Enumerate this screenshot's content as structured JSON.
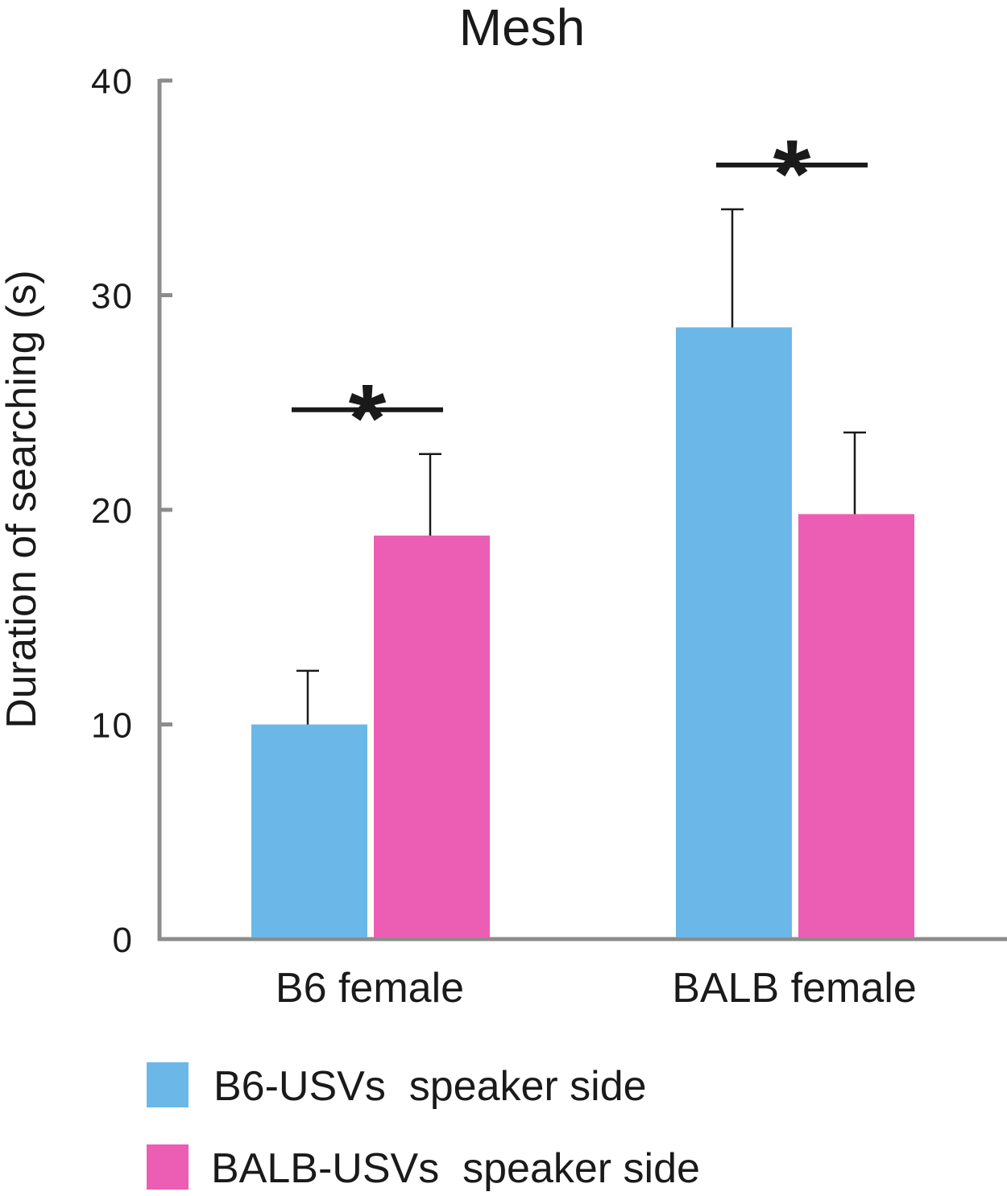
{
  "chart_data": {
    "type": "bar",
    "title": "Mesh",
    "xlabel": "",
    "ylabel": "Duration of searching (s)",
    "ylim": [
      0,
      40
    ],
    "yticks": [
      0,
      10,
      20,
      30,
      40
    ],
    "categories": [
      "B6 female",
      "BALB female"
    ],
    "series": [
      {
        "name": "B6-USVs  speaker side",
        "color": "#6bb8e8",
        "values": [
          10.0,
          28.5
        ],
        "errors": [
          2.5,
          5.5
        ]
      },
      {
        "name": "BALB-USVs  speaker side",
        "color": "#ec5eb3",
        "values": [
          18.8,
          19.8
        ],
        "errors": [
          3.8,
          3.8
        ]
      }
    ],
    "significance": [
      {
        "category": "B6 female",
        "label": "*"
      },
      {
        "category": "BALB female",
        "label": "*"
      }
    ],
    "grid": false,
    "legend_position": "bottom-left"
  }
}
